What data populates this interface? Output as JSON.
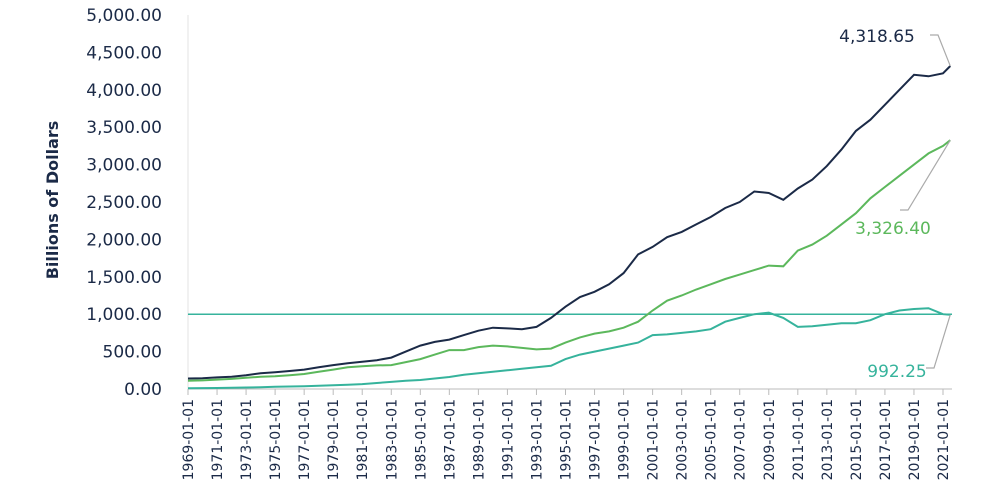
{
  "chart_data": {
    "type": "line",
    "y_label": "Billions of Dollars",
    "x": [
      "1969-01-01",
      "1970-01-01",
      "1971-01-01",
      "1972-01-01",
      "1973-01-01",
      "1974-01-01",
      "1975-01-01",
      "1976-01-01",
      "1977-01-01",
      "1978-01-01",
      "1979-01-01",
      "1980-01-01",
      "1981-01-01",
      "1982-01-01",
      "1983-01-01",
      "1984-01-01",
      "1985-01-01",
      "1986-01-01",
      "1987-01-01",
      "1988-01-01",
      "1989-01-01",
      "1990-01-01",
      "1991-01-01",
      "1992-01-01",
      "1993-01-01",
      "1994-01-01",
      "1995-01-01",
      "1996-01-01",
      "1997-01-01",
      "1998-01-01",
      "1999-01-01",
      "2000-01-01",
      "2001-01-01",
      "2002-01-01",
      "2003-01-01",
      "2004-01-01",
      "2005-01-01",
      "2006-01-01",
      "2007-01-01",
      "2008-01-01",
      "2009-01-01",
      "2010-01-01",
      "2011-01-01",
      "2012-01-01",
      "2013-01-01",
      "2014-01-01",
      "2015-01-01",
      "2016-01-01",
      "2017-01-01",
      "2018-01-01",
      "2019-01-01",
      "2020-01-01",
      "2021-01-01",
      "2021-07-01"
    ],
    "xticks": [
      "1969-01-01",
      "1971-01-01",
      "1973-01-01",
      "1975-01-01",
      "1977-01-01",
      "1979-01-01",
      "1981-01-01",
      "1983-01-01",
      "1985-01-01",
      "1987-01-01",
      "1989-01-01",
      "1991-01-01",
      "1993-01-01",
      "1995-01-01",
      "1997-01-01",
      "1999-01-01",
      "2001-01-01",
      "2003-01-01",
      "2005-01-01",
      "2007-01-01",
      "2009-01-01",
      "2011-01-01",
      "2013-01-01",
      "2015-01-01",
      "2017-01-01",
      "2019-01-01",
      "2021-01-01"
    ],
    "series": [
      {
        "color": "#1b2a47",
        "values": [
          140,
          145,
          155,
          165,
          185,
          210,
          225,
          240,
          260,
          290,
          320,
          345,
          365,
          385,
          420,
          500,
          580,
          630,
          660,
          720,
          780,
          820,
          810,
          800,
          830,
          950,
          1100,
          1230,
          1300,
          1400,
          1550,
          1800,
          1900,
          2030,
          2100,
          2200,
          2300,
          2420,
          2500,
          2640,
          2620,
          2530,
          2680,
          2800,
          2980,
          3200,
          3450,
          3600,
          3800,
          4000,
          4200,
          4180,
          4220,
          4318.65
        ],
        "value_labels": [
          null,
          null,
          null,
          null,
          null,
          null,
          null,
          null,
          null,
          null,
          null,
          null,
          null,
          null,
          null,
          null,
          null,
          null,
          null,
          null,
          null,
          null,
          null,
          null,
          null,
          null,
          null,
          null,
          null,
          null,
          null,
          null,
          null,
          null,
          null,
          null,
          null,
          null,
          null,
          null,
          null,
          null,
          null,
          null,
          null,
          null,
          null,
          null,
          null,
          null,
          null,
          null,
          null,
          "4,318.65"
        ]
      },
      {
        "color": "#5cb85c",
        "values": [
          110,
          115,
          125,
          135,
          150,
          165,
          170,
          185,
          200,
          230,
          260,
          290,
          305,
          315,
          320,
          360,
          400,
          460,
          520,
          520,
          560,
          580,
          570,
          550,
          530,
          540,
          620,
          690,
          740,
          770,
          820,
          900,
          1050,
          1180,
          1250,
          1330,
          1400,
          1470,
          1530,
          1590,
          1650,
          1640,
          1850,
          1930,
          2050,
          2200,
          2350,
          2550,
          2700,
          2850,
          3000,
          3150,
          3250,
          3326.4
        ],
        "value_labels": [
          null,
          null,
          null,
          null,
          null,
          null,
          null,
          null,
          null,
          null,
          null,
          null,
          null,
          null,
          null,
          null,
          null,
          null,
          null,
          null,
          null,
          null,
          null,
          null,
          null,
          null,
          null,
          null,
          null,
          null,
          null,
          null,
          null,
          null,
          null,
          null,
          null,
          null,
          null,
          null,
          null,
          null,
          null,
          null,
          null,
          null,
          null,
          null,
          null,
          null,
          null,
          null,
          null,
          "3,326.40"
        ]
      },
      {
        "color": "#36b39c",
        "values": [
          10,
          12,
          14,
          17,
          20,
          24,
          30,
          34,
          38,
          44,
          50,
          56,
          65,
          80,
          95,
          110,
          120,
          140,
          160,
          190,
          210,
          230,
          250,
          270,
          290,
          310,
          400,
          460,
          500,
          540,
          580,
          620,
          720,
          730,
          750,
          770,
          800,
          900,
          950,
          1000,
          1020,
          950,
          830,
          840,
          860,
          880,
          880,
          920,
          1000,
          1050,
          1070,
          1080,
          1000,
          992.25
        ]
      }
    ],
    "reference_line": {
      "value": 1000,
      "color": "#36b39c"
    },
    "ylim": [
      0,
      5000
    ],
    "yticks": [
      {
        "value": 0,
        "label": "0.00"
      },
      {
        "value": 500,
        "label": "500.00"
      },
      {
        "value": 1000,
        "label": "1,000.00"
      },
      {
        "value": 1500,
        "label": "1,500.00"
      },
      {
        "value": 2000,
        "label": "2,000.00"
      },
      {
        "value": 2500,
        "label": "2,500.00"
      },
      {
        "value": 3000,
        "label": "3,000.00"
      },
      {
        "value": 3500,
        "label": "3,500.00"
      },
      {
        "value": 4000,
        "label": "4,000.00"
      },
      {
        "value": 4500,
        "label": "4,500.00"
      },
      {
        "value": 5000,
        "label": "5,000.00"
      }
    ]
  }
}
